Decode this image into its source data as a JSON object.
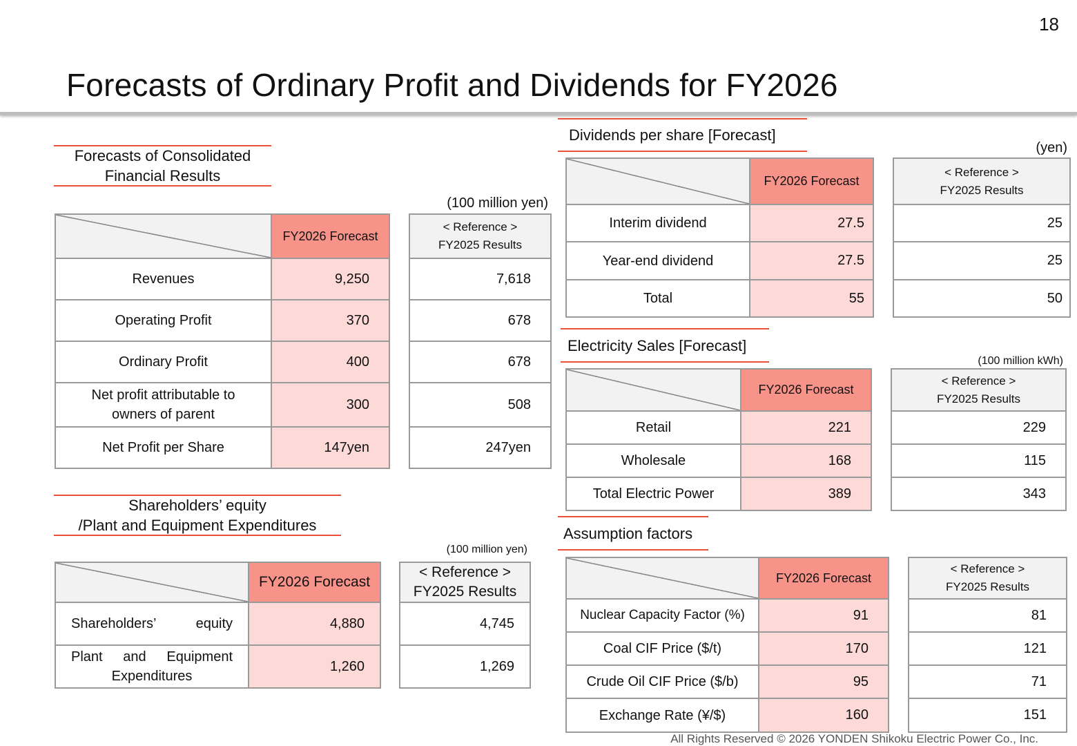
{
  "page_number": "18",
  "title": "Forecasts of Ordinary Profit and Dividends for FY2026",
  "financial": {
    "heading": "Forecasts of Consolidated Financial Results",
    "unit": "(100 million yen)",
    "col_forecast": "FY2026 Forecast",
    "ref_line1": "< Reference >",
    "ref_line2": "FY2025 Results",
    "rows": [
      {
        "label": "Revenues",
        "forecast": "9,250",
        "result": "7,618"
      },
      {
        "label": "Operating Profit",
        "forecast": "370",
        "result": "678"
      },
      {
        "label": "Ordinary Profit",
        "forecast": "400",
        "result": "678"
      },
      {
        "label": "Net profit attributable to owners of parent",
        "forecast": "300",
        "result": "508"
      },
      {
        "label": "Net Profit per Share",
        "forecast": "147yen",
        "result": "247yen"
      }
    ]
  },
  "equity": {
    "heading_line1": "Shareholders’ equity",
    "heading_line2": "/Plant and Equipment Expenditures",
    "unit": "(100 million yen)",
    "col_forecast": "FY2026 Forecast",
    "ref_line1": "< Reference >",
    "ref_line2": "FY2025 Results",
    "rows": [
      {
        "label": "Shareholders’ equity",
        "forecast": "4,880",
        "result": "4,745"
      },
      {
        "label": "Plant and Equipment Expenditures",
        "forecast": "1,260",
        "result": "1,269"
      }
    ]
  },
  "dividends": {
    "heading": "Dividends per share [Forecast]",
    "unit": "(yen)",
    "col_forecast": "FY2026 Forecast",
    "ref_line1": "< Reference >",
    "ref_line2": "FY2025 Results",
    "rows": [
      {
        "label": "Interim dividend",
        "forecast": "27.5",
        "result": "25"
      },
      {
        "label": "Year-end dividend",
        "forecast": "27.5",
        "result": "25"
      },
      {
        "label": "Total",
        "forecast": "55",
        "result": "50"
      }
    ]
  },
  "electricity": {
    "heading": "Electricity Sales [Forecast]",
    "unit": "(100 million kWh)",
    "col_forecast": "FY2026 Forecast",
    "ref_line1": "< Reference >",
    "ref_line2": "FY2025 Results",
    "rows": [
      {
        "label": "Retail",
        "forecast": "221",
        "result": "229"
      },
      {
        "label": "Wholesale",
        "forecast": "168",
        "result": "115"
      },
      {
        "label": "Total Electric Power",
        "forecast": "389",
        "result": "343"
      }
    ]
  },
  "assumptions": {
    "heading": "Assumption factors",
    "col_forecast": "FY2026 Forecast",
    "ref_line1": "< Reference >",
    "ref_line2": "FY2025 Results",
    "rows": [
      {
        "label": "Nuclear Capacity Factor (%)",
        "forecast": "91",
        "result": "81"
      },
      {
        "label": "Coal CIF Price ($/t)",
        "forecast": "170",
        "result": "121"
      },
      {
        "label": "Crude Oil CIF Price ($/b)",
        "forecast": "95",
        "result": "71"
      },
      {
        "label": "Exchange Rate (¥/$)",
        "forecast": "160",
        "result": "151"
      }
    ]
  },
  "footer": "All Rights Reserved ©  2026 YONDEN Shikoku Electric Power Co., Inc."
}
